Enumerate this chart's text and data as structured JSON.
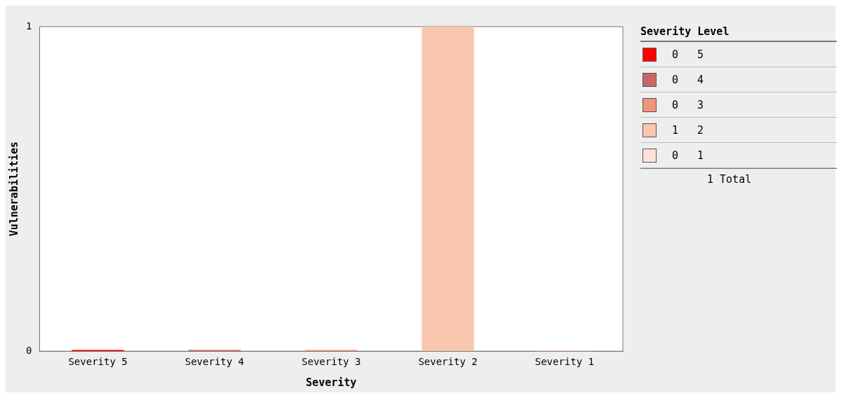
{
  "chart_data": {
    "type": "bar",
    "xlabel": "Severity",
    "ylabel": "Vulnerabilities",
    "legend_title": "Severity Level",
    "categories": [
      "Severity 5",
      "Severity 4",
      "Severity 3",
      "Severity 2",
      "Severity 1"
    ],
    "stacked": true,
    "series": [
      {
        "name": "0 5",
        "color": "#ff0000",
        "values": [
          0,
          null,
          null,
          null,
          null
        ]
      },
      {
        "name": "0 4",
        "color": "#cc6666",
        "values": [
          null,
          0,
          null,
          null,
          null
        ]
      },
      {
        "name": "0 3",
        "color": "#f0957a",
        "values": [
          null,
          null,
          0,
          null,
          null
        ]
      },
      {
        "name": "1 2",
        "color": "#f9c6b0",
        "values": [
          null,
          null,
          null,
          1,
          null
        ]
      },
      {
        "name": "0 1",
        "color": "#fbe3d8",
        "values": [
          null,
          null,
          null,
          null,
          0
        ]
      }
    ],
    "ylim": [
      0,
      1
    ],
    "yticks": [
      0,
      1
    ],
    "grid": false,
    "legend": "right",
    "annotations": [
      "1 Total"
    ]
  }
}
